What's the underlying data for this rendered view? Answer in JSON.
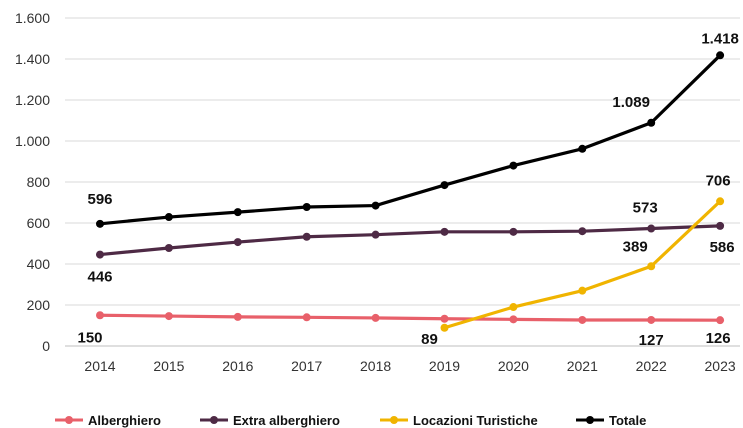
{
  "chart_data": {
    "type": "line",
    "title": "",
    "xlabel": "",
    "ylabel": "",
    "x": [
      "2014",
      "2015",
      "2016",
      "2017",
      "2018",
      "2019",
      "2020",
      "2021",
      "2022",
      "2023"
    ],
    "ylim": [
      0,
      1600
    ],
    "yticks": [
      0,
      200,
      400,
      600,
      800,
      1000,
      1200,
      1400,
      1600
    ],
    "ytick_labels": [
      "0",
      "200",
      "400",
      "600",
      "800",
      "1.000",
      "1.200",
      "1.400",
      "1.600"
    ],
    "grid": "horizontal",
    "legend_position": "bottom",
    "series": [
      {
        "name": "Alberghiero",
        "color": "#e8606a",
        "values": [
          150,
          146,
          142,
          140,
          137,
          133,
          130,
          127,
          127,
          126
        ]
      },
      {
        "name": "Extra alberghiero",
        "color": "#4e2a45",
        "values": [
          446,
          478,
          507,
          533,
          543,
          557,
          557,
          560,
          573,
          586
        ]
      },
      {
        "name": "Locazioni Turistiche",
        "color": "#f0b400",
        "values": [
          null,
          null,
          null,
          null,
          null,
          89,
          190,
          270,
          389,
          706
        ]
      },
      {
        "name": "Totale",
        "color": "#000000",
        "values": [
          596,
          629,
          653,
          678,
          685,
          785,
          880,
          962,
          1089,
          1418
        ]
      }
    ],
    "data_labels": [
      {
        "series": 3,
        "index": 0,
        "text": "596"
      },
      {
        "series": 1,
        "index": 0,
        "text": "446"
      },
      {
        "series": 0,
        "index": 0,
        "text": "150"
      },
      {
        "series": 2,
        "index": 5,
        "text": "89"
      },
      {
        "series": 3,
        "index": 8,
        "text": "1.089"
      },
      {
        "series": 1,
        "index": 8,
        "text": "573"
      },
      {
        "series": 2,
        "index": 8,
        "text": "389"
      },
      {
        "series": 0,
        "index": 8,
        "text": "127"
      },
      {
        "series": 3,
        "index": 9,
        "text": "1.418"
      },
      {
        "series": 2,
        "index": 9,
        "text": "706"
      },
      {
        "series": 1,
        "index": 9,
        "text": "586"
      },
      {
        "series": 0,
        "index": 9,
        "text": "126"
      }
    ]
  }
}
